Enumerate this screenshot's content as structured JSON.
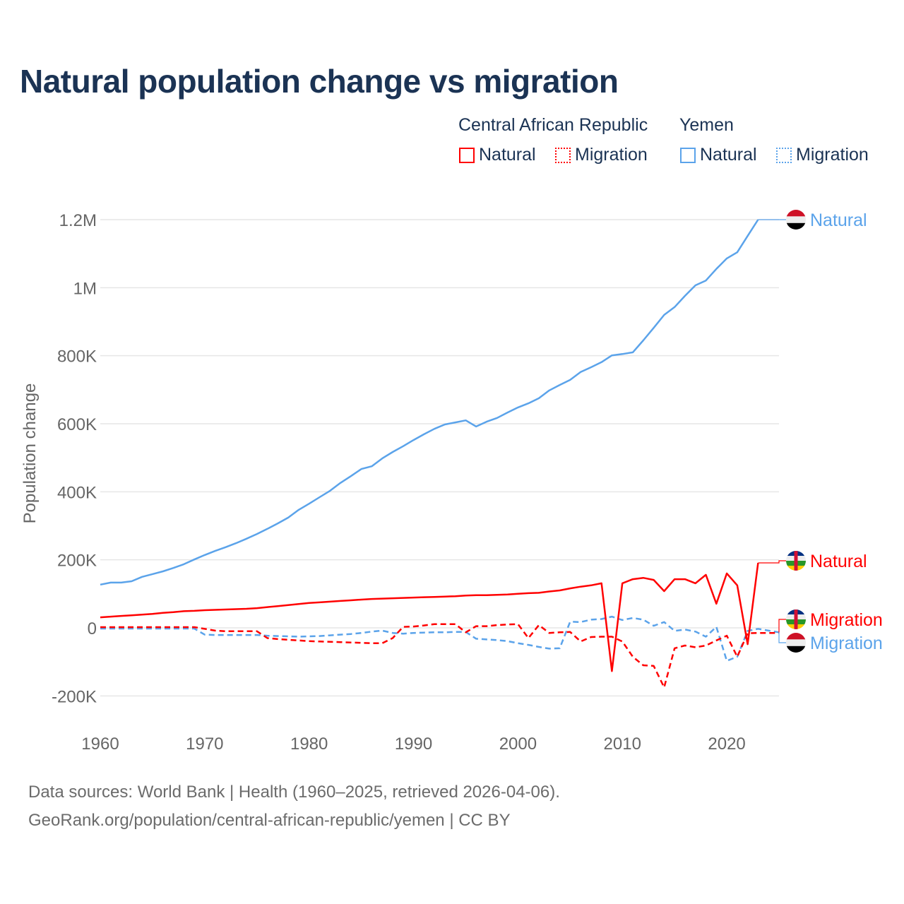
{
  "chart_data": {
    "type": "line",
    "title": "Natural population change vs migration",
    "ylabel": "Population change",
    "xlabel": "",
    "xlim": [
      1960,
      2025
    ],
    "ylim": [
      -250000,
      1250000
    ],
    "x_ticks": [
      1960,
      1970,
      1980,
      1990,
      2000,
      2010,
      2020
    ],
    "x_tick_labels": [
      "1960",
      "1970",
      "1980",
      "1990",
      "2000",
      "2010",
      "2020"
    ],
    "y_ticks": [
      -200000,
      0,
      200000,
      400000,
      600000,
      800000,
      1000000,
      1200000
    ],
    "y_tick_labels": [
      "-200K",
      "0",
      "200K",
      "400K",
      "600K",
      "800K",
      "1M",
      "1.2M"
    ],
    "grid": true,
    "legend_placement": "top-right",
    "legend_groups": [
      "Central African Republic",
      "Yemen"
    ],
    "series": [
      {
        "name": "Natural",
        "country": "Central African Republic",
        "color": "#ff0000",
        "dash": "solid",
        "start_year": 1960,
        "end_label": "Natural",
        "values": [
          31000,
          33000,
          35000,
          37000,
          39000,
          41000,
          44000,
          46000,
          49000,
          50000,
          52000,
          53000,
          54000,
          55000,
          56000,
          58000,
          61000,
          64000,
          67000,
          70000,
          73000,
          75000,
          77000,
          79000,
          81000,
          83000,
          85000,
          86000,
          87000,
          88000,
          89000,
          90000,
          91000,
          92000,
          93000,
          95000,
          96000,
          96000,
          97000,
          98000,
          100000,
          102000,
          103000,
          107000,
          110000,
          116000,
          121000,
          125000,
          131000,
          -127000,
          131000,
          143000,
          147000,
          141000,
          108000,
          143000,
          143000,
          131000,
          156000,
          71000,
          160000,
          125000,
          -48000,
          191000
        ]
      },
      {
        "name": "Migration",
        "country": "Central African Republic",
        "color": "#ff0000",
        "dash": "dashed",
        "start_year": 1960,
        "end_label": "Migration",
        "values": [
          2000,
          2000,
          2000,
          2000,
          2000,
          2000,
          2000,
          2000,
          2000,
          2000,
          -3000,
          -8000,
          -10000,
          -10000,
          -10000,
          -10000,
          -30000,
          -33000,
          -35000,
          -37000,
          -39000,
          -40000,
          -41000,
          -42000,
          -43000,
          -44000,
          -45000,
          -45000,
          -30000,
          3000,
          4000,
          7000,
          11000,
          11000,
          11000,
          -13000,
          5000,
          5000,
          8000,
          10000,
          11000,
          -30000,
          8000,
          -15000,
          -13000,
          -12000,
          -40000,
          -27000,
          -26000,
          -26000,
          -40000,
          -85000,
          -110000,
          -112000,
          -175000,
          -60000,
          -52000,
          -57000,
          -52000,
          -37000,
          -23000,
          -85000,
          -16000,
          -15000,
          -15000,
          -15000
        ]
      },
      {
        "name": "Natural",
        "country": "Yemen",
        "color": "#5ba3ea",
        "dash": "solid",
        "start_year": 1960,
        "end_label": "Natural",
        "values": [
          127000,
          133000,
          133000,
          137000,
          150000,
          158000,
          166000,
          176000,
          187000,
          201000,
          214000,
          226000,
          237000,
          249000,
          262000,
          276000,
          291000,
          307000,
          324000,
          347000,
          365000,
          384000,
          403000,
          426000,
          446000,
          467000,
          475000,
          498000,
          517000,
          534000,
          552000,
          569000,
          585000,
          598000,
          604000,
          610000,
          592000,
          606000,
          617000,
          633000,
          648000,
          660000,
          675000,
          698000,
          714000,
          729000,
          752000,
          766000,
          781000,
          801000,
          805000,
          810000,
          845000,
          882000,
          920000,
          943000,
          976000,
          1007000,
          1021000,
          1055000,
          1086000,
          1104000,
          1152000,
          1200000
        ]
      },
      {
        "name": "Migration",
        "country": "Yemen",
        "color": "#5ba3ea",
        "dash": "dashed",
        "start_year": 1960,
        "end_label": "Migration",
        "values": [
          -2000,
          -2000,
          -2000,
          -2000,
          -2000,
          -2000,
          -2000,
          -2000,
          -2000,
          -2000,
          -20000,
          -21000,
          -21000,
          -21000,
          -21000,
          -21000,
          -23000,
          -24000,
          -25000,
          -26000,
          -25000,
          -24000,
          -22000,
          -20000,
          -18000,
          -15000,
          -11000,
          -8000,
          -15000,
          -17000,
          -15000,
          -14000,
          -13000,
          -13000,
          -12000,
          -12000,
          -32000,
          -34000,
          -36000,
          -39000,
          -45000,
          -50000,
          -56000,
          -61000,
          -60000,
          18000,
          17000,
          24000,
          26000,
          33000,
          23000,
          29000,
          24000,
          6000,
          17000,
          -9000,
          -5000,
          -11000,
          -26000,
          3000,
          -97000,
          -85000,
          -9000,
          -3000,
          -8000,
          -13000
        ]
      }
    ]
  },
  "legend": {
    "car_label": "Central African Republic",
    "yemen_label": "Yemen",
    "natural": "Natural",
    "migration": "Migration"
  },
  "footer": {
    "line1": "Data sources: World Bank | Health (1960–2025, retrieved 2026-04-06).",
    "line2": "GeoRank.org/population/central-african-republic/yemen | CC BY"
  }
}
